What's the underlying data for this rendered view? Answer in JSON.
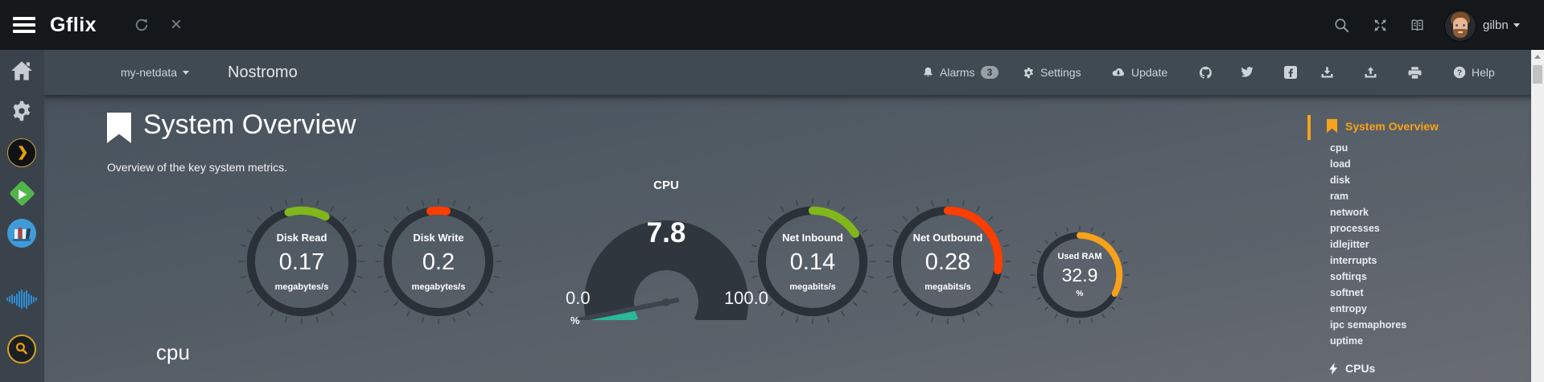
{
  "topbar": {
    "brand": "Gflix",
    "username": "gilbn"
  },
  "navbar": {
    "host": "my-netdata",
    "node": "Nostromo",
    "alarms_label": "Alarms",
    "alarms_count": "3",
    "settings_label": "Settings",
    "update_label": "Update",
    "help_label": "Help"
  },
  "main": {
    "section_title": "System Overview",
    "section_subtitle": "Overview of the key system metrics.",
    "next_section_title": "cpu",
    "gauges": [
      {
        "kind": "pie",
        "title": "Disk Read",
        "value": "0.17",
        "units": "megabytes/s",
        "color": "#7fb71d",
        "arc_start": -15,
        "arc_end": 28,
        "size": 164
      },
      {
        "kind": "pie",
        "title": "Disk Write",
        "value": "0.2",
        "units": "megabytes/s",
        "color": "#fc3e00",
        "arc_start": -9,
        "arc_end": 9,
        "size": 164
      },
      {
        "kind": "gauge",
        "title": "CPU",
        "value": "7.8",
        "min": "0.0",
        "max": "100.0",
        "units": "%",
        "percent": 7.8,
        "color": "#2ab899"
      },
      {
        "kind": "pie",
        "title": "Net Inbound",
        "value": "0.14",
        "units": "megabits/s",
        "color": "#7fb71d",
        "arc_start": 0,
        "arc_end": 57,
        "size": 164
      },
      {
        "kind": "pie",
        "title": "Net Outbound",
        "value": "0.28",
        "units": "megabits/s",
        "color": "#fc3e00",
        "arc_start": 0,
        "arc_end": 100,
        "size": 164
      },
      {
        "kind": "pie",
        "title": "Used RAM",
        "value": "32.9",
        "units": "%",
        "color": "#f7a21b",
        "arc_start": 0,
        "arc_end": 118,
        "size": 128
      }
    ]
  },
  "menu": {
    "active_label": "System Overview",
    "items": [
      "cpu",
      "load",
      "disk",
      "ram",
      "network",
      "processes",
      "idlejitter",
      "interrupts",
      "softirqs",
      "softnet",
      "entropy",
      "ipc semaphores",
      "uptime"
    ],
    "cpus_label": "CPUs"
  },
  "colors": {
    "accent_orange": "#f8a21b",
    "green": "#7fb71d",
    "red": "#fc3e00",
    "teal": "#2ab899",
    "topbar_bg": "#14181b",
    "navbar_bg": "#3f4a53"
  }
}
